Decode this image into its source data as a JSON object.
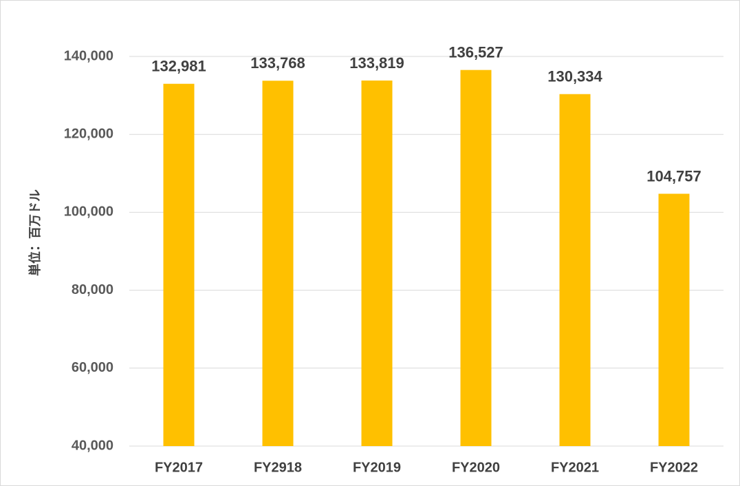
{
  "chart_data": {
    "type": "bar",
    "title": "",
    "xlabel": "",
    "ylabel": "単位：百万ドル",
    "categories": [
      "FY2017",
      "FY2918",
      "FY2019",
      "FY2020",
      "FY2021",
      "FY2022"
    ],
    "values": [
      132981,
      133768,
      133819,
      136527,
      130334,
      104757
    ],
    "value_labels": [
      "132,981",
      "133,768",
      "133,819",
      "136,527",
      "130,334",
      "104,757"
    ],
    "ylim": [
      40000,
      140000
    ],
    "yticks": [
      40000,
      60000,
      80000,
      100000,
      120000,
      140000
    ],
    "ytick_labels": [
      "40,000",
      "60,000",
      "80,000",
      "100,000",
      "120,000",
      "140,000"
    ],
    "grid": true,
    "bar_color": "#FFC000",
    "legend": "none"
  }
}
